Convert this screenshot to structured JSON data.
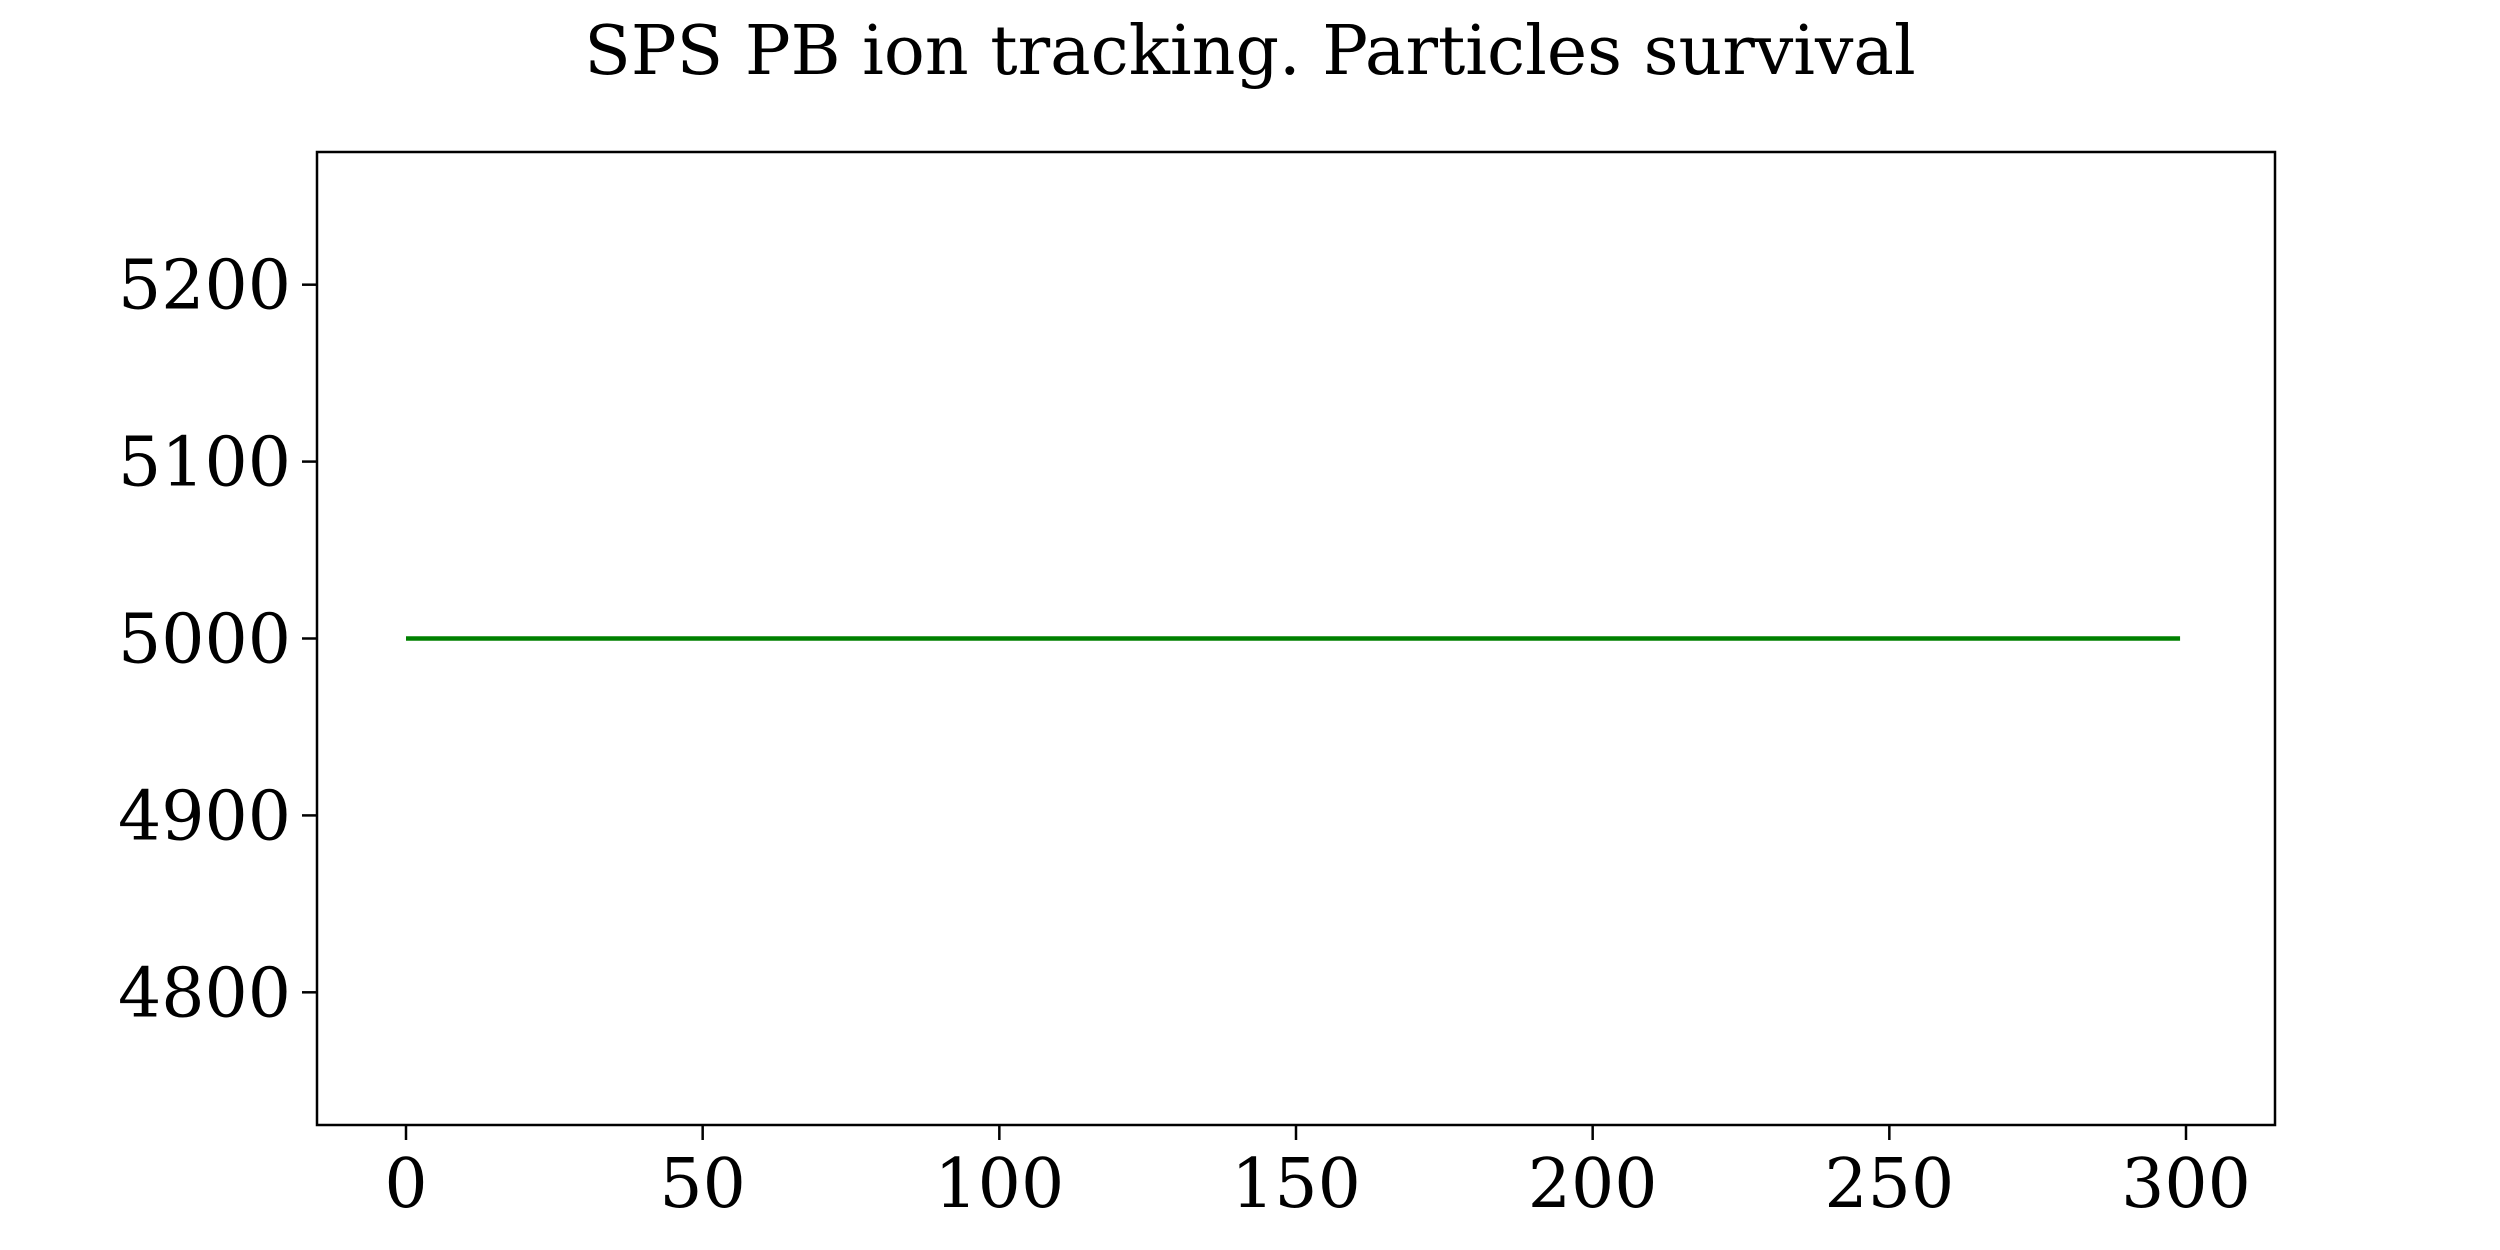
{
  "chart_data": {
    "type": "line",
    "title": "SPS PB ion tracking. Particles survival",
    "xlabel": "",
    "ylabel": "",
    "xlim": [
      -15,
      315
    ],
    "ylim": [
      4725,
      5275
    ],
    "x_ticks": [
      0,
      50,
      100,
      150,
      200,
      250,
      300
    ],
    "y_ticks": [
      4800,
      4900,
      5000,
      5100,
      5200
    ],
    "grid": false,
    "series": [
      {
        "color": "#008000",
        "x": [
          0,
          50,
          100,
          150,
          200,
          250,
          299
        ],
        "y": [
          5000,
          5000,
          5000,
          5000,
          5000,
          5000,
          5000
        ]
      }
    ]
  }
}
